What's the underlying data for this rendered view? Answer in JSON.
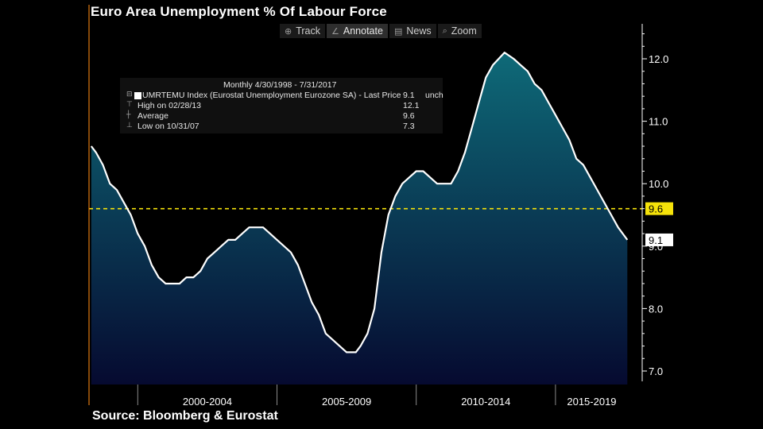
{
  "title": "Euro Area Unemployment % Of Labour Force",
  "source": "Source: Bloomberg & Eurostat",
  "toolbar": [
    {
      "icon": "crosshair-icon",
      "glyph": "⊕",
      "label": "Track",
      "active": false
    },
    {
      "icon": "pencil-icon",
      "glyph": "∠",
      "label": "Annotate",
      "active": true
    },
    {
      "icon": "news-icon",
      "glyph": "▤",
      "label": "News",
      "active": false
    },
    {
      "icon": "zoom-icon",
      "glyph": "⌕",
      "label": "Zoom",
      "active": false
    }
  ],
  "legend": {
    "header": "Monthly 4/30/1998 - 7/31/2017",
    "series_label": "UMRTEMU Index (Eurostat Unemployment Eurozone SA) - Last Price",
    "last_value": "9.1",
    "last_change": "unch",
    "high_label": "High on 02/28/13",
    "high_value": "12.1",
    "average_label": "Average",
    "average_value": "9.6",
    "low_label": "Low on 10/31/07",
    "low_value": "7.3"
  },
  "colors": {
    "line": "#ffffff",
    "fill_top": "#0e6a78",
    "fill_bottom": "#060a30",
    "average_line": "#f5e20a",
    "axis": "#ffffff",
    "start_marker": "#e07a10"
  },
  "chart_data": {
    "type": "area",
    "title": "Euro Area Unemployment % Of Labour Force",
    "xlabel": "",
    "ylabel": "",
    "ylim": [
      7.0,
      12.5
    ],
    "y_ticks": [
      7.0,
      8.0,
      9.0,
      10.0,
      11.0,
      12.0
    ],
    "y_tick_labels": [
      "7.0",
      "8.0",
      "9.0",
      "10.0",
      "11.0",
      "12.0"
    ],
    "x_range": [
      1998.25,
      2017.6
    ],
    "x_dividers": [
      2000,
      2005,
      2010,
      2015
    ],
    "x_group_labels": [
      {
        "label": "2000-2004",
        "start": 2000,
        "end": 2005
      },
      {
        "label": "2005-2009",
        "start": 2005,
        "end": 2010
      },
      {
        "label": "2010-2014",
        "start": 2010,
        "end": 2015
      },
      {
        "label": "2015-2019",
        "start": 2015,
        "end": 2017.6
      }
    ],
    "average": 9.6,
    "average_label": "9.6",
    "last_label": "9.1",
    "grid": false,
    "series": [
      {
        "x": [
          1998.33,
          1998.5,
          1998.75,
          1999.0,
          1999.25,
          1999.5,
          1999.75,
          2000.0,
          2000.25,
          2000.5,
          2000.75,
          2001.0,
          2001.25,
          2001.5,
          2001.75,
          2002.0,
          2002.25,
          2002.5,
          2002.75,
          2003.0,
          2003.25,
          2003.5,
          2003.75,
          2004.0,
          2004.25,
          2004.5,
          2004.75,
          2005.0,
          2005.25,
          2005.5,
          2005.75,
          2006.0,
          2006.25,
          2006.5,
          2006.75,
          2007.0,
          2007.25,
          2007.5,
          2007.83,
          2008.0,
          2008.25,
          2008.5,
          2008.75,
          2009.0,
          2009.25,
          2009.5,
          2009.75,
          2010.0,
          2010.25,
          2010.5,
          2010.75,
          2011.0,
          2011.25,
          2011.5,
          2011.75,
          2012.0,
          2012.25,
          2012.5,
          2012.75,
          2013.17,
          2013.5,
          2013.75,
          2014.0,
          2014.25,
          2014.5,
          2014.75,
          2015.0,
          2015.25,
          2015.5,
          2015.75,
          2016.0,
          2016.25,
          2016.5,
          2016.75,
          2017.0,
          2017.25,
          2017.58
        ],
        "y": [
          10.6,
          10.5,
          10.3,
          10.0,
          9.9,
          9.7,
          9.5,
          9.2,
          9.0,
          8.7,
          8.5,
          8.4,
          8.4,
          8.4,
          8.5,
          8.5,
          8.6,
          8.8,
          8.9,
          9.0,
          9.1,
          9.1,
          9.2,
          9.3,
          9.3,
          9.3,
          9.2,
          9.1,
          9.0,
          8.9,
          8.7,
          8.4,
          8.1,
          7.9,
          7.6,
          7.5,
          7.4,
          7.3,
          7.3,
          7.4,
          7.6,
          8.0,
          8.9,
          9.5,
          9.8,
          10.0,
          10.1,
          10.2,
          10.2,
          10.1,
          10.0,
          10.0,
          10.0,
          10.2,
          10.5,
          10.9,
          11.3,
          11.7,
          11.9,
          12.1,
          12.0,
          11.9,
          11.8,
          11.6,
          11.5,
          11.3,
          11.1,
          10.9,
          10.7,
          10.4,
          10.3,
          10.1,
          9.9,
          9.7,
          9.5,
          9.3,
          9.1
        ]
      }
    ]
  }
}
